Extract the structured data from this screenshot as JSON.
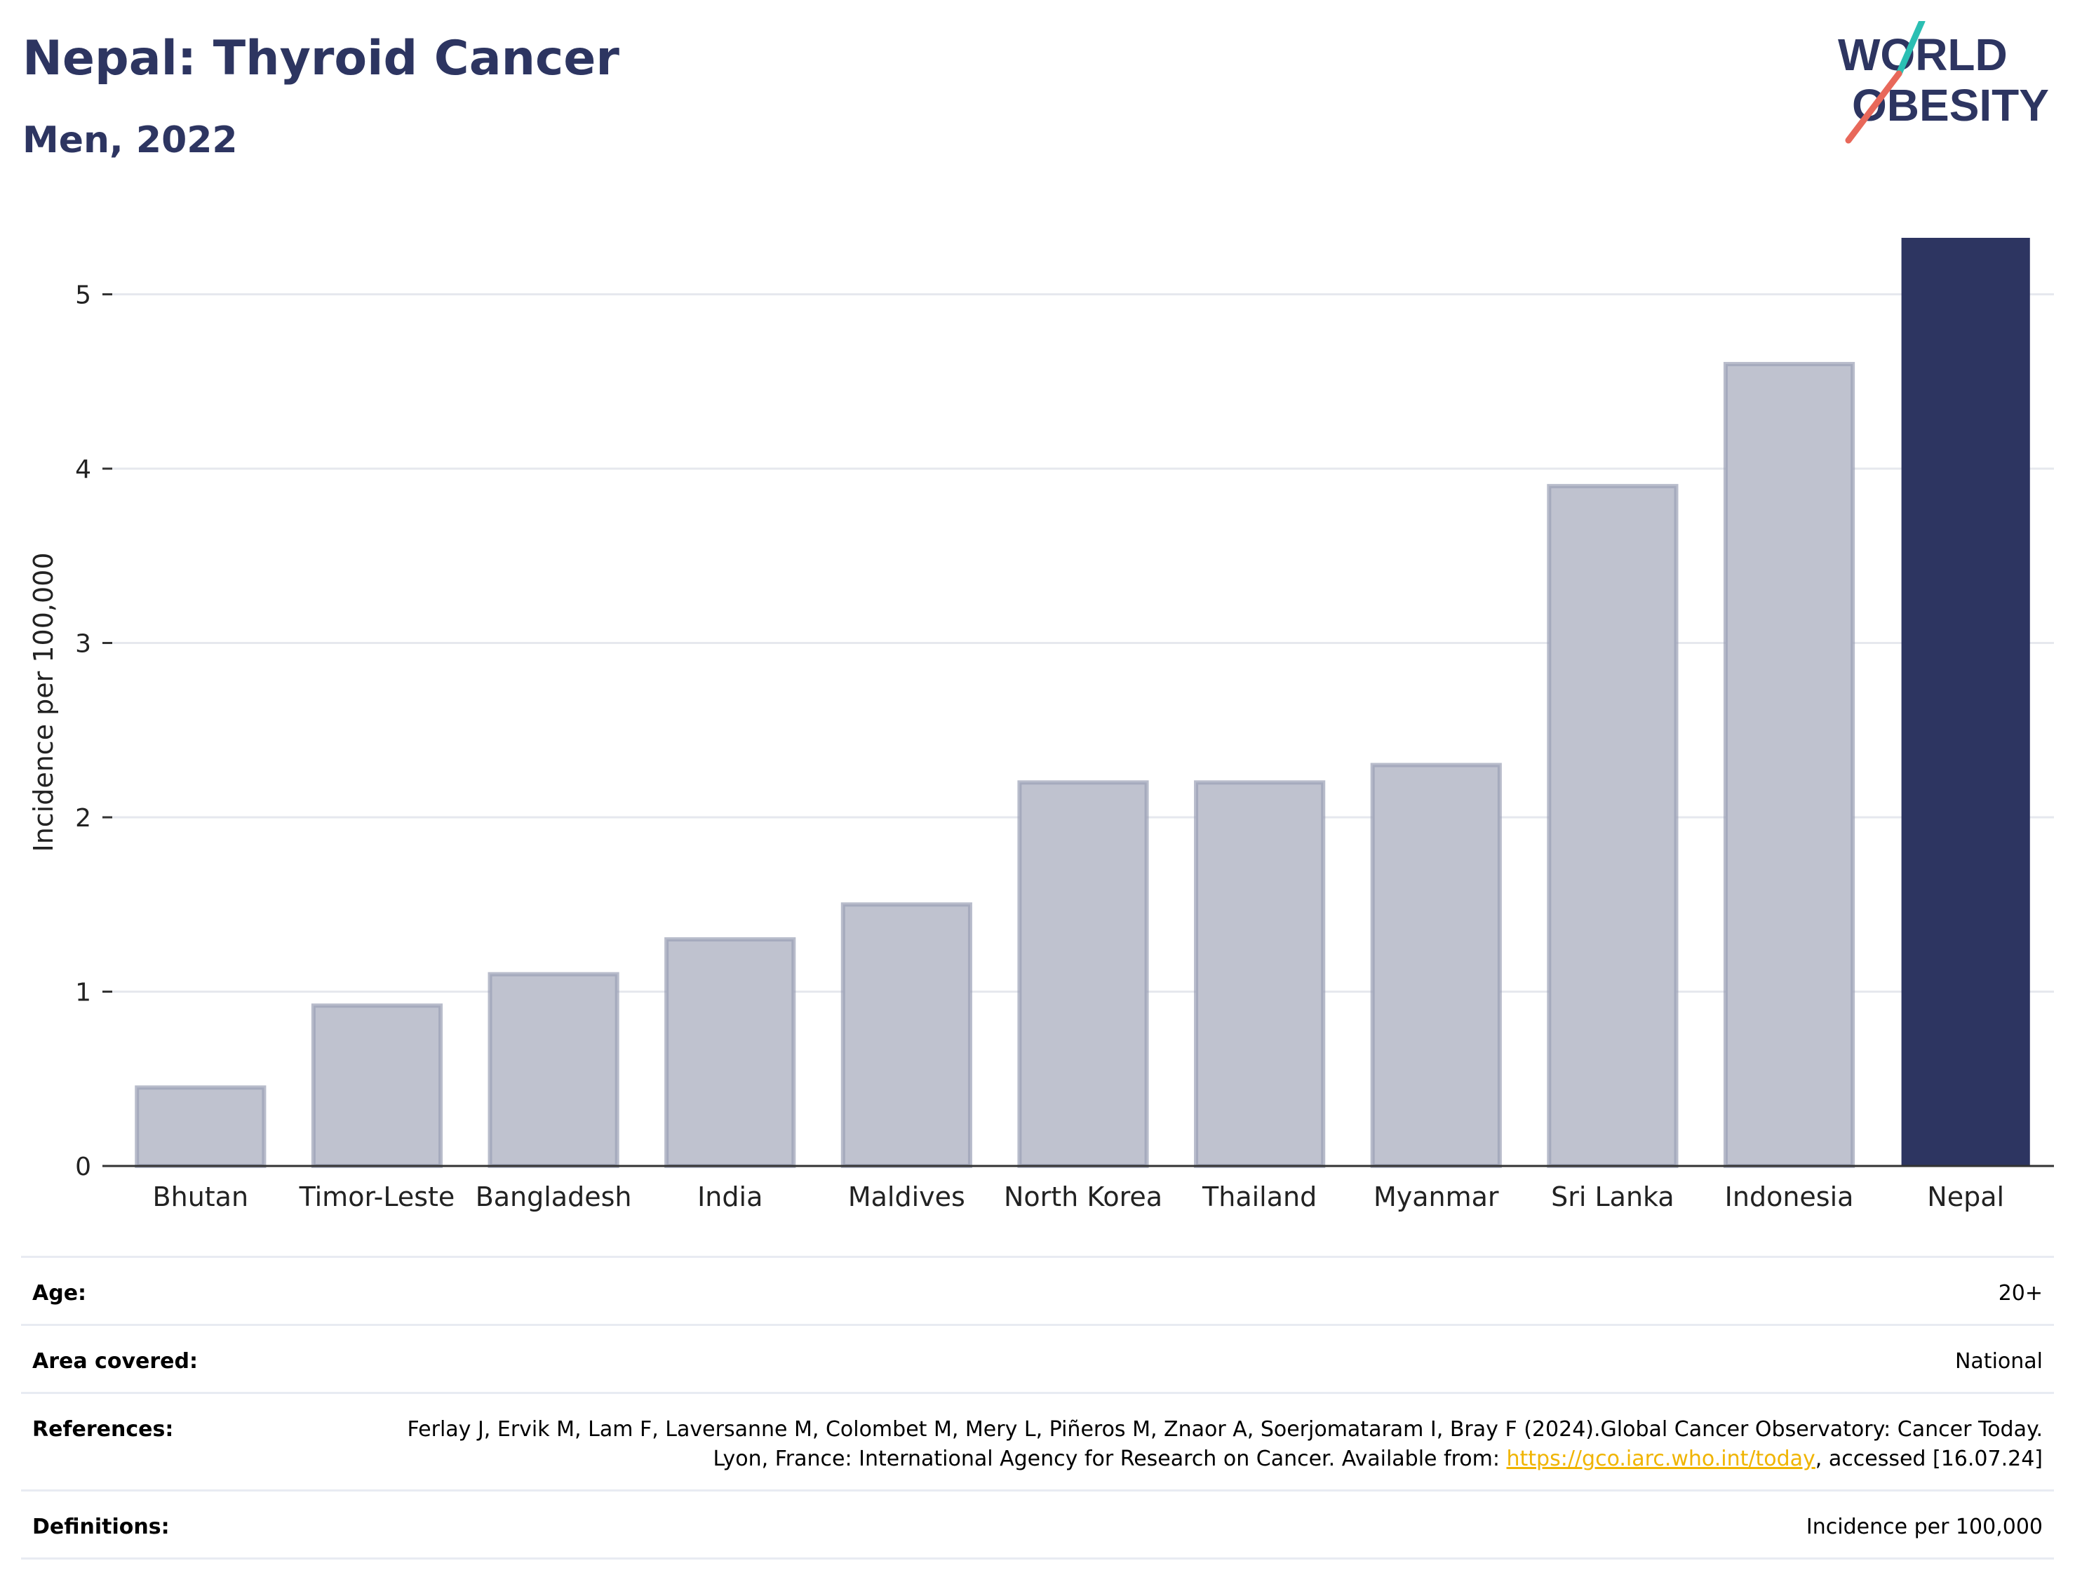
{
  "header": {
    "title": "Nepal: Thyroid Cancer",
    "subtitle": "Men, 2022"
  },
  "logo": {
    "line1": "WORLD",
    "line2": "OBESITY",
    "accent_teal": "#2bbfb3",
    "accent_red": "#e8685a"
  },
  "colors": {
    "highlight": "#2d3561",
    "others": "#bfc2cf",
    "others_stroke": "#9a9fb5"
  },
  "chart_data": {
    "type": "bar",
    "categories": [
      "Bhutan",
      "Timor-Leste",
      "Bangladesh",
      "India",
      "Maldives",
      "North Korea",
      "Thailand",
      "Myanmar",
      "Sri Lanka",
      "Indonesia",
      "Nepal"
    ],
    "values": [
      0.45,
      0.92,
      1.1,
      1.3,
      1.5,
      2.2,
      2.2,
      2.3,
      3.9,
      4.6,
      5.32
    ],
    "highlight": "Nepal",
    "ylabel": "Incidence per 100,000",
    "yticks": [
      0,
      1,
      2,
      3,
      4,
      5
    ],
    "ylim": [
      0,
      5.32
    ],
    "grid": true
  },
  "meta": {
    "age_label": "Age:",
    "age_value": "20+",
    "area_label": "Area covered:",
    "area_value": "National",
    "references_label": "References:",
    "references_text": "Ferlay J, Ervik M, Lam F, Laversanne M, Colombet M, Mery L, Piñeros M, Znaor A, Soerjomataram I, Bray F (2024).Global Cancer Observatory: Cancer Today. Lyon, France: International Agency for Research on Cancer. Available from: ",
    "references_link": "https://gco.iarc.who.int/today",
    "references_suffix": ", accessed [16.07.24]",
    "definitions_label": "Definitions:",
    "definitions_value": "Incidence per 100,000"
  }
}
